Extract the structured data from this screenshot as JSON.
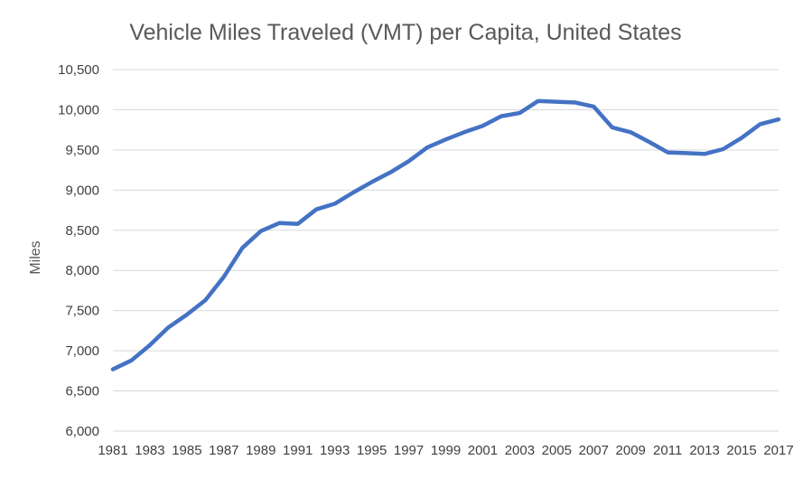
{
  "chart_data": {
    "type": "line",
    "title": "Vehicle Miles Traveled (VMT) per Capita, United States",
    "xlabel": "",
    "ylabel": "Miles",
    "ylim": [
      6000,
      10500
    ],
    "ytick_step": 500,
    "y_tick_labels": [
      "6,000",
      "6,500",
      "7,000",
      "7,500",
      "8,000",
      "8,500",
      "9,000",
      "9,500",
      "10,000",
      "10,500"
    ],
    "x_tick_labels": [
      "1981",
      "1983",
      "1985",
      "1987",
      "1989",
      "1991",
      "1993",
      "1995",
      "1997",
      "1999",
      "2001",
      "2003",
      "2005",
      "2007",
      "2009",
      "2011",
      "2013",
      "2015",
      "2017"
    ],
    "grid": true,
    "legend": "none",
    "color": "#4472c4",
    "x": [
      1981,
      1982,
      1983,
      1984,
      1985,
      1986,
      1987,
      1988,
      1989,
      1990,
      1991,
      1992,
      1993,
      1994,
      1995,
      1996,
      1997,
      1998,
      1999,
      2000,
      2001,
      2002,
      2003,
      2004,
      2005,
      2006,
      2007,
      2008,
      2009,
      2010,
      2011,
      2012,
      2013,
      2014,
      2015,
      2016,
      2017
    ],
    "series": [
      {
        "values": [
          6770,
          6880,
          7070,
          7290,
          7450,
          7630,
          7920,
          8280,
          8490,
          8590,
          8580,
          8760,
          8830,
          8970,
          9100,
          9220,
          9360,
          9530,
          9630,
          9720,
          9800,
          9920,
          9960,
          10110,
          10100,
          10090,
          10040,
          9780,
          9720,
          9600,
          9470,
          9460,
          9450,
          9510,
          9650,
          9820,
          9880
        ]
      }
    ]
  }
}
